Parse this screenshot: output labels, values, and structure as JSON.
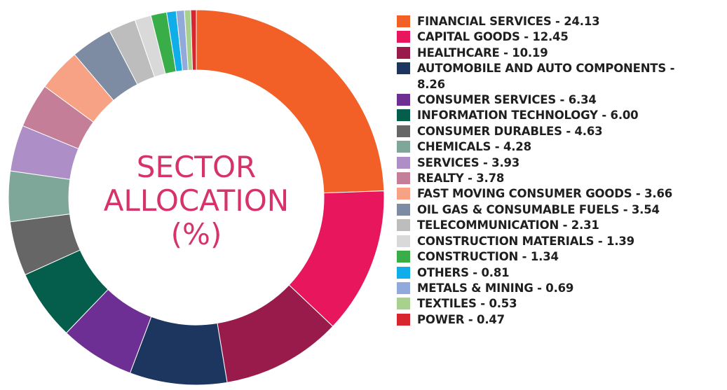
{
  "chart_data": {
    "type": "pie",
    "title": "SECTOR ALLOCATION (%)",
    "title_lines": [
      "SECTOR",
      "ALLOCATION",
      "(%)"
    ],
    "legend_position": "right",
    "slices": [
      {
        "label": "FINANCIAL SERVICES",
        "value": 24.13,
        "color": "#f26027",
        "legend": "FINANCIAL SERVICES - 24.13"
      },
      {
        "label": "CAPITAL GOODS",
        "value": 12.45,
        "color": "#e8175d",
        "legend": "CAPITAL GOODS - 12.45"
      },
      {
        "label": "HEALTHCARE",
        "value": 10.19,
        "color": "#991b4c",
        "legend": "HEALTHCARE - 10.19"
      },
      {
        "label": "AUTOMOBILE AND AUTO COMPONENTS",
        "value": 8.26,
        "color": "#1c3660",
        "legend": "AUTOMOBILE AND AUTO COMPONENTS - 8.26"
      },
      {
        "label": "CONSUMER SERVICES",
        "value": 6.34,
        "color": "#6d2f94",
        "legend": "CONSUMER SERVICES - 6.34"
      },
      {
        "label": "INFORMATION TECHNOLOGY",
        "value": 6.0,
        "color": "#055e4b",
        "legend": "INFORMATION TECHNOLOGY - 6.00"
      },
      {
        "label": "CONSUMER DURABLES",
        "value": 4.63,
        "color": "#666666",
        "legend": "CONSUMER DURABLES - 4.63"
      },
      {
        "label": "CHEMICALS",
        "value": 4.28,
        "color": "#7ea699",
        "legend": "CHEMICALS - 4.28"
      },
      {
        "label": "SERVICES",
        "value": 3.93,
        "color": "#ad8ec7",
        "legend": "SERVICES - 3.93"
      },
      {
        "label": "REALTY",
        "value": 3.78,
        "color": "#c47e98",
        "legend": "REALTY - 3.78"
      },
      {
        "label": "FAST MOVING CONSUMER GOODS",
        "value": 3.66,
        "color": "#f7a185",
        "legend": "FAST MOVING CONSUMER GOODS - 3.66"
      },
      {
        "label": "OIL GAS & CONSUMABLE FUELS",
        "value": 3.54,
        "color": "#7d8ba3",
        "legend": "OIL GAS & CONSUMABLE FUELS - 3.54"
      },
      {
        "label": "TELECOMMUNICATION",
        "value": 2.31,
        "color": "#bdbdbd",
        "legend": "TELECOMMUNICATION - 2.31"
      },
      {
        "label": "CONSTRUCTION MATERIALS",
        "value": 1.39,
        "color": "#d9d9d9",
        "legend": "CONSTRUCTION MATERIALS - 1.39"
      },
      {
        "label": "CONSTRUCTION",
        "value": 1.34,
        "color": "#39ad48",
        "legend": "CONSTRUCTION - 1.34"
      },
      {
        "label": "OTHERS",
        "value": 0.81,
        "color": "#10aee8",
        "legend": "OTHERS - 0.81"
      },
      {
        "label": "METALS & MINING",
        "value": 0.69,
        "color": "#92a9db",
        "legend": "METALS & MINING - 0.69"
      },
      {
        "label": "TEXTILES",
        "value": 0.53,
        "color": "#a9d18e",
        "legend": "TEXTILES - 0.53"
      },
      {
        "label": "POWER",
        "value": 0.47,
        "color": "#d8262e",
        "legend": "POWER - 0.47"
      }
    ]
  }
}
